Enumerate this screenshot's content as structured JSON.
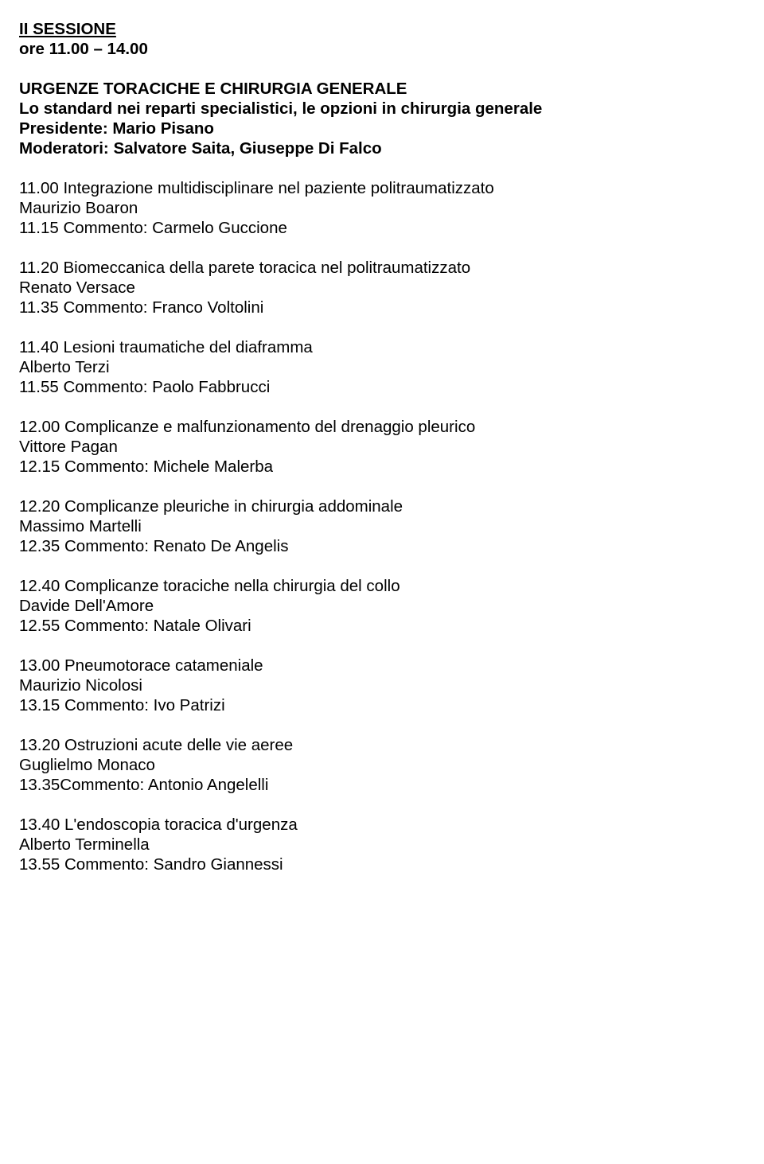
{
  "session": {
    "title": "II SESSIONE",
    "time": "ore 11.00 – 14.00"
  },
  "header": {
    "subtitle": "URGENZE TORACICHE E CHIRURGIA GENERALE",
    "subtitle2": "Lo standard nei reparti specialistici, le opzioni in chirurgia generale",
    "president": "Presidente: Mario Pisano",
    "moderators": "Moderatori: Salvatore Saita, Giuseppe Di Falco"
  },
  "items": [
    {
      "title": "11.00 Integrazione multidisciplinare nel paziente politraumatizzato",
      "speaker": "Maurizio Boaron",
      "comment": "11.15 Commento: Carmelo Guccione"
    },
    {
      "title": "11.20 Biomeccanica della parete toracica nel politraumatizzato",
      "speaker": "Renato Versace",
      "comment": "11.35 Commento: Franco Voltolini"
    },
    {
      "title": "11.40 Lesioni traumatiche del diaframma",
      "speaker": "Alberto Terzi",
      "comment": "11.55 Commento: Paolo Fabbrucci"
    },
    {
      "title": "12.00 Complicanze e malfunzionamento del drenaggio pleurico",
      "speaker": "Vittore Pagan",
      "comment": "12.15 Commento: Michele Malerba"
    },
    {
      "title": "12.20 Complicanze pleuriche in chirurgia addominale",
      "speaker": "Massimo Martelli",
      "comment": "12.35 Commento: Renato De Angelis"
    },
    {
      "title": "12.40 Complicanze toraciche nella chirurgia del collo",
      "speaker": "Davide Dell'Amore",
      "comment": "12.55 Commento: Natale Olivari"
    },
    {
      "title": "13.00 Pneumotorace catameniale",
      "speaker": "Maurizio Nicolosi",
      "comment": "13.15 Commento: Ivo Patrizi"
    },
    {
      "title": "13.20 Ostruzioni acute delle vie aeree",
      "speaker": "Guglielmo Monaco",
      "comment": "13.35Commento: Antonio Angelelli"
    },
    {
      "title": "13.40 L'endoscopia toracica d'urgenza",
      "speaker": "Alberto Terminella",
      "comment": "13.55 Commento: Sandro Giannessi"
    }
  ]
}
